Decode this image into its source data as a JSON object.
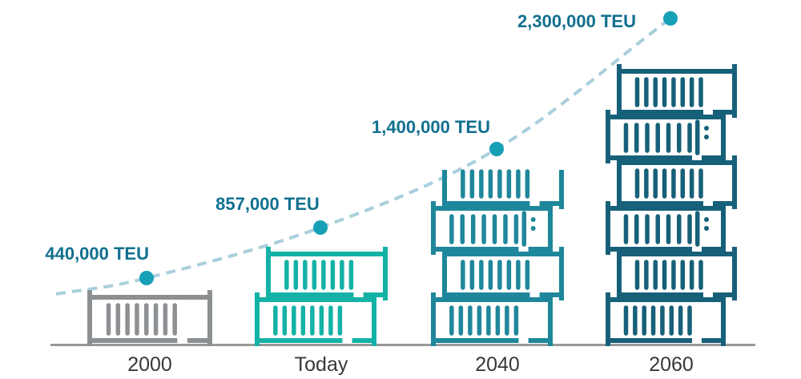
{
  "chart_data": {
    "type": "line",
    "description": "Container throughput growth shown as stacked container icons with a dashed trend curve",
    "categories": [
      "2000",
      "Today",
      "2040",
      "2060"
    ],
    "values": [
      440000,
      857000,
      1400000,
      2300000
    ],
    "value_labels": [
      "440,000 TEU",
      "857,000 TEU",
      "1,400,000 TEU",
      "2,300,000 TEU"
    ],
    "unit": "TEU",
    "grid": false,
    "legend": "none",
    "stacks": [
      {
        "category": "2000",
        "containers": 1,
        "variants": [
          "plain"
        ],
        "color": "#8d9093"
      },
      {
        "category": "Today",
        "containers": 2,
        "variants": [
          "plain",
          "plain"
        ],
        "color": "#14b2a6"
      },
      {
        "category": "2040",
        "containers": 4,
        "variants": [
          "plain",
          "plain",
          "door",
          "open"
        ],
        "color": "#1f879b"
      },
      {
        "category": "2060",
        "containers": 6,
        "variants": [
          "plain",
          "plain",
          "door",
          "plain",
          "door",
          "plain"
        ],
        "color": "#176079"
      }
    ],
    "trend_line": {
      "style": "dashed",
      "color": "#a9cfdc",
      "dot_color": "#17a0b5"
    }
  },
  "styles": {
    "value_label_color": "#11708f",
    "axis_line_color": "#999999",
    "category_label_color": "#383838",
    "background": "#ffffff"
  }
}
